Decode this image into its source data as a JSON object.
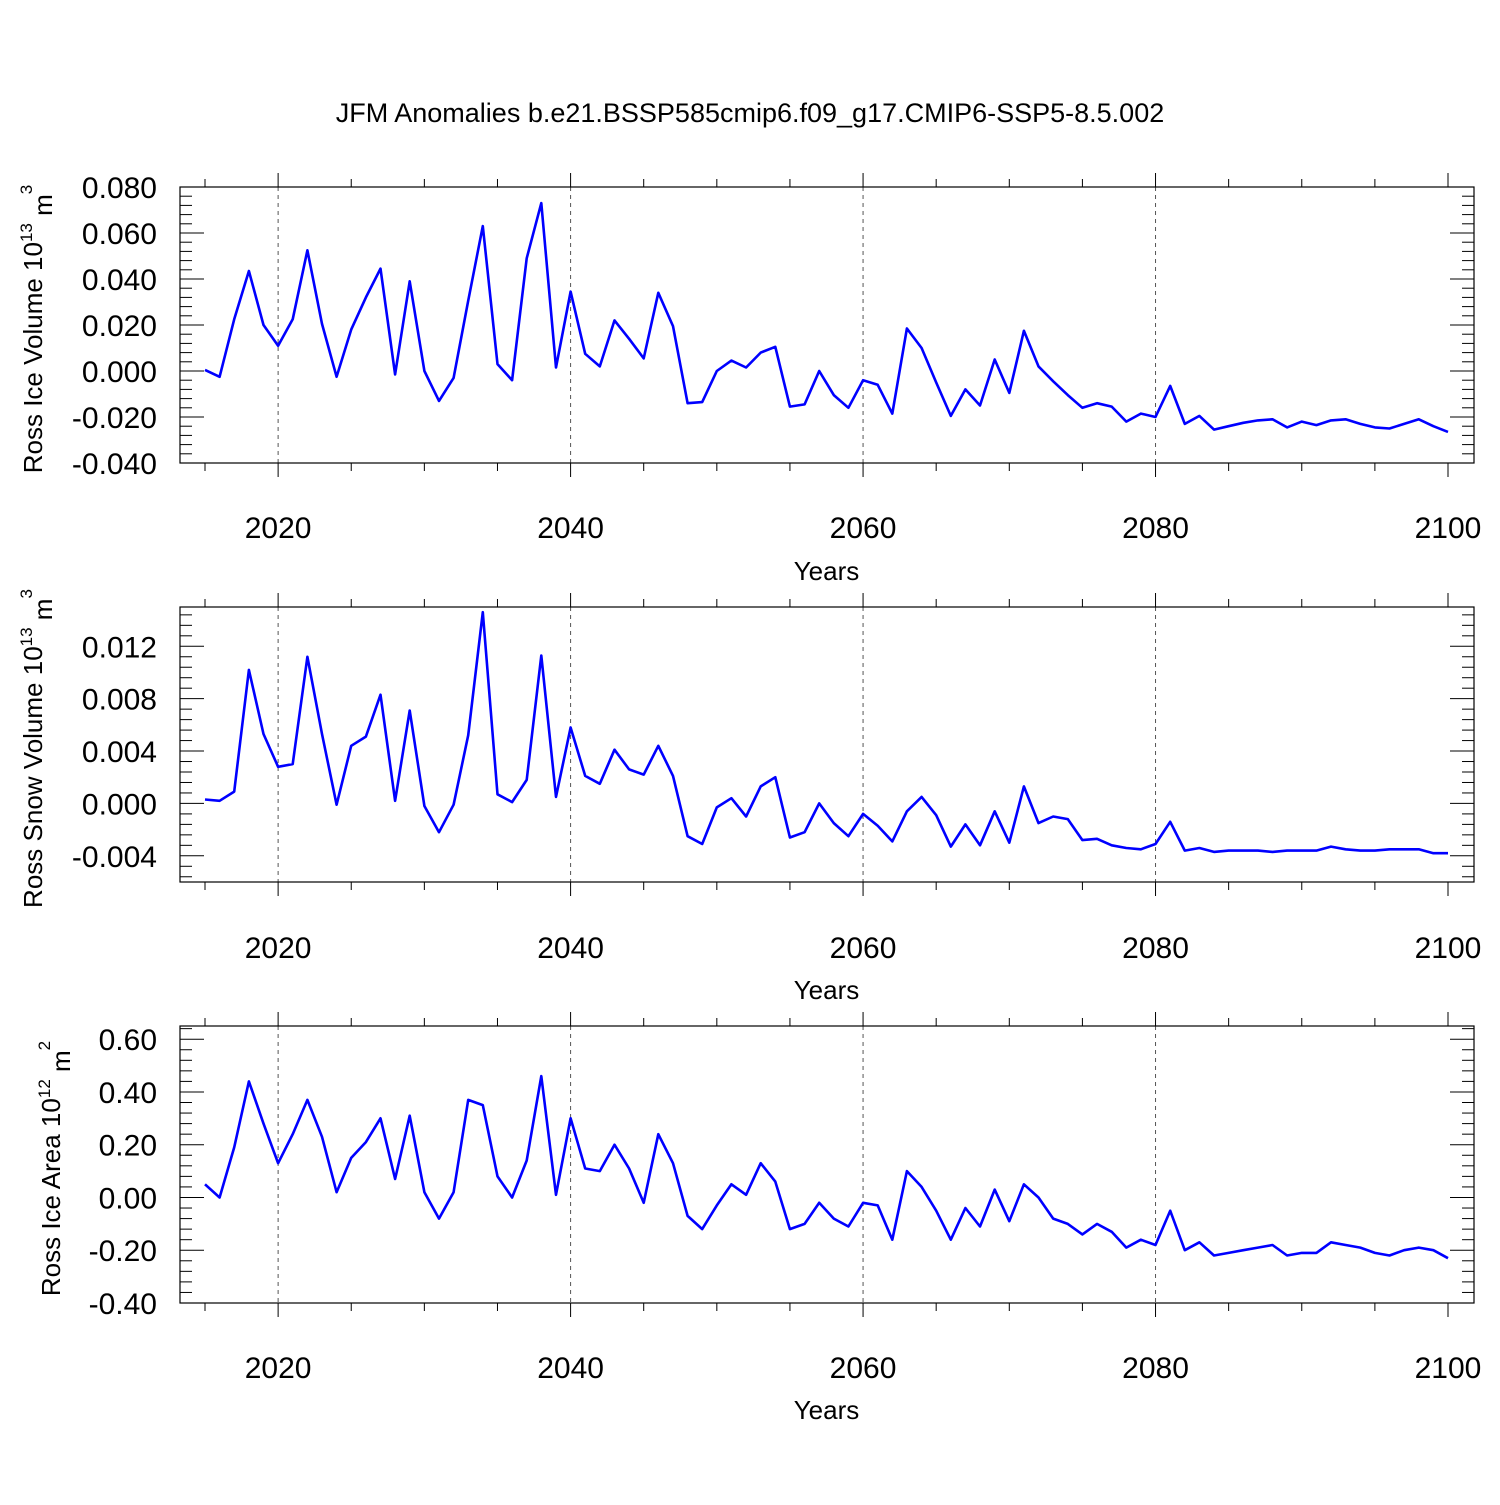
{
  "title": "JFM Anomalies b.e21.BSSP585cmip6.f09_g17.CMIP6-SSP5-8.5.002",
  "line_color": "#0000ff",
  "chart_data": [
    {
      "type": "line",
      "ylabel": "Ross Ice Volume 10",
      "ylabel_exp": "13",
      "ylabel_unit": " m",
      "ylabel_unit_exp": "3",
      "xlabel": "Years",
      "xlim": [
        2015,
        2100
      ],
      "ylim": [
        -0.04,
        0.08
      ],
      "xticks": [
        2020,
        2040,
        2060,
        2080,
        2100
      ],
      "xtick_labels": [
        "2020",
        "2040",
        "2060",
        "2080",
        "2100"
      ],
      "yticks": [
        -0.04,
        -0.02,
        0.0,
        0.02,
        0.04,
        0.06,
        0.08
      ],
      "ytick_labels": [
        "-0.040",
        "-0.020",
        "0.000",
        "0.020",
        "0.040",
        "0.060",
        "0.080"
      ],
      "grid_x": "dashed at major x ticks",
      "series": [
        {
          "x": [
            2015,
            2016,
            2017,
            2018,
            2019,
            2020,
            2021,
            2022,
            2023,
            2024,
            2025,
            2026,
            2027,
            2028,
            2029,
            2030,
            2031,
            2032,
            2033,
            2034,
            2035,
            2036,
            2037,
            2038,
            2039,
            2040,
            2041,
            2042,
            2043,
            2044,
            2045,
            2046,
            2047,
            2048,
            2049,
            2050,
            2051,
            2052,
            2053,
            2054,
            2055,
            2056,
            2057,
            2058,
            2059,
            2060,
            2061,
            2062,
            2063,
            2064,
            2065,
            2066,
            2067,
            2068,
            2069,
            2070,
            2071,
            2072,
            2073,
            2074,
            2075,
            2076,
            2077,
            2078,
            2079,
            2080,
            2081,
            2082,
            2083,
            2084,
            2085,
            2086,
            2087,
            2088,
            2089,
            2090,
            2091,
            2092,
            2093,
            2094,
            2095,
            2096,
            2097,
            2098,
            2099,
            2100
          ],
          "values": [
            0.0005,
            -0.0025,
            0.0225,
            0.0435,
            0.02,
            0.011,
            0.0225,
            0.0525,
            0.0205,
            -0.0025,
            0.018,
            0.032,
            0.0445,
            -0.0015,
            0.039,
            0.0,
            -0.013,
            -0.003,
            0.0305,
            0.063,
            0.003,
            -0.004,
            0.049,
            0.073,
            0.0015,
            0.0345,
            0.0075,
            0.002,
            0.022,
            0.014,
            0.0055,
            0.034,
            0.0195,
            -0.014,
            -0.0135,
            0.0,
            0.0045,
            0.0015,
            0.008,
            0.0105,
            -0.0155,
            -0.0145,
            0.0,
            -0.0105,
            -0.016,
            -0.004,
            -0.006,
            -0.0185,
            0.0185,
            0.01,
            -0.005,
            -0.0195,
            -0.008,
            -0.015,
            0.005,
            -0.0095,
            0.0175,
            0.002,
            -0.0045,
            -0.0105,
            -0.016,
            -0.014,
            -0.0155,
            -0.022,
            -0.0185,
            -0.02,
            -0.0065,
            -0.023,
            -0.0195,
            -0.0255,
            -0.024,
            -0.0225,
            -0.0215,
            -0.021,
            -0.0245,
            -0.022,
            -0.0235,
            -0.0215,
            -0.021,
            -0.023,
            -0.0245,
            -0.025,
            -0.023,
            -0.021,
            -0.024,
            -0.0265
          ]
        }
      ]
    },
    {
      "type": "line",
      "ylabel": "Ross Snow Volume 10",
      "ylabel_exp": "13",
      "ylabel_unit": " m",
      "ylabel_unit_exp": "3",
      "xlabel": "Years",
      "xlim": [
        2015,
        2100
      ],
      "ylim": [
        -0.006,
        0.015
      ],
      "xticks": [
        2020,
        2040,
        2060,
        2080,
        2100
      ],
      "xtick_labels": [
        "2020",
        "2040",
        "2060",
        "2080",
        "2100"
      ],
      "yticks": [
        -0.004,
        0.0,
        0.004,
        0.008,
        0.012
      ],
      "ytick_labels": [
        "-0.004",
        "0.000",
        "0.004",
        "0.008",
        "0.012"
      ],
      "grid_x": "dashed at major x ticks",
      "series": [
        {
          "x": [
            2015,
            2016,
            2017,
            2018,
            2019,
            2020,
            2021,
            2022,
            2023,
            2024,
            2025,
            2026,
            2027,
            2028,
            2029,
            2030,
            2031,
            2032,
            2033,
            2034,
            2035,
            2036,
            2037,
            2038,
            2039,
            2040,
            2041,
            2042,
            2043,
            2044,
            2045,
            2046,
            2047,
            2048,
            2049,
            2050,
            2051,
            2052,
            2053,
            2054,
            2055,
            2056,
            2057,
            2058,
            2059,
            2060,
            2061,
            2062,
            2063,
            2064,
            2065,
            2066,
            2067,
            2068,
            2069,
            2070,
            2071,
            2072,
            2073,
            2074,
            2075,
            2076,
            2077,
            2078,
            2079,
            2080,
            2081,
            2082,
            2083,
            2084,
            2085,
            2086,
            2087,
            2088,
            2089,
            2090,
            2091,
            2092,
            2093,
            2094,
            2095,
            2096,
            2097,
            2098,
            2099,
            2100
          ],
          "values": [
            0.0003,
            0.0002,
            0.0009,
            0.0102,
            0.0053,
            0.0028,
            0.003,
            0.0112,
            0.0053,
            -0.0001,
            0.0044,
            0.0051,
            0.0083,
            0.0002,
            0.0071,
            -0.0002,
            -0.0022,
            -0.0001,
            0.0052,
            0.0146,
            0.0007,
            0.0001,
            0.0018,
            0.0113,
            0.0005,
            0.0058,
            0.0021,
            0.0015,
            0.0041,
            0.0026,
            0.0022,
            0.0044,
            0.0021,
            -0.0025,
            -0.0031,
            -0.0003,
            0.0004,
            -0.001,
            0.0013,
            0.002,
            -0.0026,
            -0.0022,
            0.0,
            -0.0015,
            -0.0025,
            -0.0008,
            -0.0017,
            -0.0029,
            -0.0006,
            0.0005,
            -0.0009,
            -0.0033,
            -0.0016,
            -0.0032,
            -0.0006,
            -0.003,
            0.0013,
            -0.0015,
            -0.001,
            -0.0012,
            -0.0028,
            -0.0027,
            -0.0032,
            -0.0034,
            -0.0035,
            -0.0031,
            -0.0014,
            -0.0036,
            -0.0034,
            -0.0037,
            -0.0036,
            -0.0036,
            -0.0036,
            -0.0037,
            -0.0036,
            -0.0036,
            -0.0036,
            -0.0033,
            -0.0035,
            -0.0036,
            -0.0036,
            -0.0035,
            -0.0035,
            -0.0035,
            -0.0038,
            -0.0038
          ]
        }
      ]
    },
    {
      "type": "line",
      "ylabel": "Ross Ice Area 10",
      "ylabel_exp": "12",
      "ylabel_unit": " m",
      "ylabel_unit_exp": "2",
      "xlabel": "Years",
      "xlim": [
        2015,
        2100
      ],
      "ylim": [
        -0.4,
        0.65
      ],
      "xticks": [
        2020,
        2040,
        2060,
        2080,
        2100
      ],
      "xtick_labels": [
        "2020",
        "2040",
        "2060",
        "2080",
        "2100"
      ],
      "yticks": [
        -0.4,
        -0.2,
        0.0,
        0.2,
        0.4,
        0.6
      ],
      "ytick_labels": [
        "-0.40",
        "-0.20",
        "0.00",
        "0.20",
        "0.40",
        "0.60"
      ],
      "grid_x": "dashed at major x ticks",
      "series": [
        {
          "x": [
            2015,
            2016,
            2017,
            2018,
            2019,
            2020,
            2021,
            2022,
            2023,
            2024,
            2025,
            2026,
            2027,
            2028,
            2029,
            2030,
            2031,
            2032,
            2033,
            2034,
            2035,
            2036,
            2037,
            2038,
            2039,
            2040,
            2041,
            2042,
            2043,
            2044,
            2045,
            2046,
            2047,
            2048,
            2049,
            2050,
            2051,
            2052,
            2053,
            2054,
            2055,
            2056,
            2057,
            2058,
            2059,
            2060,
            2061,
            2062,
            2063,
            2064,
            2065,
            2066,
            2067,
            2068,
            2069,
            2070,
            2071,
            2072,
            2073,
            2074,
            2075,
            2076,
            2077,
            2078,
            2079,
            2080,
            2081,
            2082,
            2083,
            2084,
            2085,
            2086,
            2087,
            2088,
            2089,
            2090,
            2091,
            2092,
            2093,
            2094,
            2095,
            2096,
            2097,
            2098,
            2099,
            2100
          ],
          "values": [
            0.05,
            0.0,
            0.19,
            0.44,
            0.28,
            0.13,
            0.24,
            0.37,
            0.23,
            0.02,
            0.15,
            0.21,
            0.3,
            0.07,
            0.31,
            0.02,
            -0.08,
            0.02,
            0.37,
            0.35,
            0.08,
            0.0,
            0.14,
            0.46,
            0.01,
            0.3,
            0.11,
            0.1,
            0.2,
            0.11,
            -0.02,
            0.24,
            0.13,
            -0.07,
            -0.12,
            -0.03,
            0.05,
            0.01,
            0.13,
            0.06,
            -0.12,
            -0.1,
            -0.02,
            -0.08,
            -0.11,
            -0.02,
            -0.03,
            -0.16,
            0.1,
            0.04,
            -0.05,
            -0.16,
            -0.04,
            -0.11,
            0.03,
            -0.09,
            0.05,
            0.0,
            -0.08,
            -0.1,
            -0.14,
            -0.1,
            -0.13,
            -0.19,
            -0.16,
            -0.18,
            -0.05,
            -0.2,
            -0.17,
            -0.22,
            -0.21,
            -0.2,
            -0.19,
            -0.18,
            -0.22,
            -0.21,
            -0.21,
            -0.17,
            -0.18,
            -0.19,
            -0.21,
            -0.22,
            -0.2,
            -0.19,
            -0.2,
            -0.23
          ]
        }
      ]
    }
  ]
}
